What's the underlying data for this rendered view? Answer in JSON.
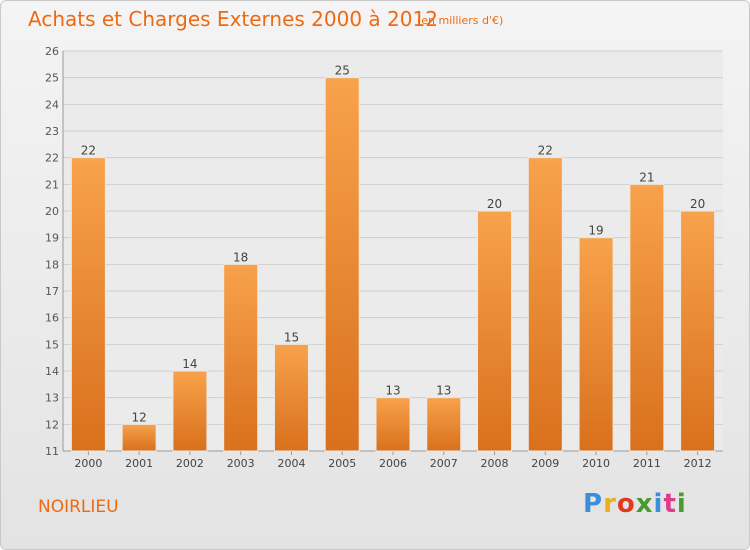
{
  "title": "Achats et Charges Externes 2000 à 2012",
  "subtitle": "(en milliers d'€)",
  "location": "NOIRLIEU",
  "logo": {
    "text": "Proxiti",
    "colors": [
      "#3a8fd8",
      "#e8b020",
      "#e33a1f",
      "#4a9a2e",
      "#3a8fd8",
      "#e03a8a",
      "#4a9a2e"
    ]
  },
  "colors": {
    "bar_top": "#f8a24b",
    "bar_bottom": "#d9701c",
    "title": "#ee6a12",
    "grid": "#cfcfcf"
  },
  "chart_data": {
    "type": "bar",
    "categories": [
      "2000",
      "2001",
      "2002",
      "2003",
      "2004",
      "2005",
      "2006",
      "2007",
      "2008",
      "2009",
      "2010",
      "2011",
      "2012"
    ],
    "values": [
      22,
      12,
      14,
      18,
      15,
      25,
      13,
      13,
      20,
      22,
      19,
      21,
      20
    ],
    "ylim": [
      11,
      26
    ],
    "yticks": [
      11,
      12,
      13,
      14,
      15,
      16,
      17,
      18,
      19,
      20,
      21,
      22,
      23,
      24,
      25,
      26
    ],
    "grid": true,
    "title": "Achats et Charges Externes 2000 à 2012",
    "xlabel": "",
    "ylabel": ""
  }
}
